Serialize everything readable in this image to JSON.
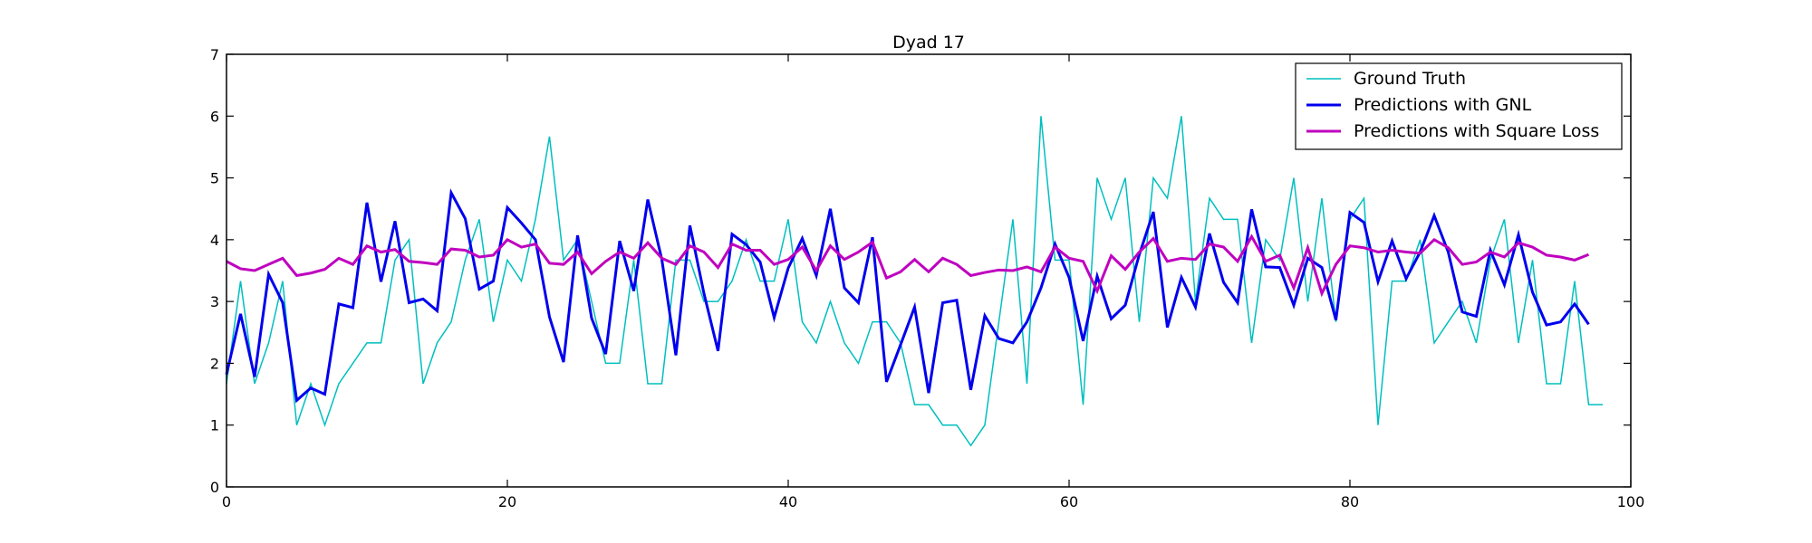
{
  "chart_data": {
    "type": "line",
    "title": "Dyad 17",
    "xlabel": "",
    "ylabel": "",
    "xlim": [
      0,
      100
    ],
    "ylim": [
      0,
      7
    ],
    "x_ticks": [
      0,
      20,
      40,
      60,
      80,
      100
    ],
    "y_ticks": [
      0,
      1,
      2,
      3,
      4,
      5,
      6,
      7
    ],
    "grid": false,
    "legend_position": "top-right",
    "series": [
      {
        "name": "Ground Truth",
        "color": "#00bfbf",
        "style": "thin",
        "x": [
          0,
          1,
          2,
          3,
          4,
          5,
          6,
          7,
          8,
          9,
          10,
          11,
          12,
          13,
          14,
          15,
          16,
          17,
          18,
          19,
          20,
          21,
          22,
          23,
          24,
          25,
          26,
          27,
          28,
          29,
          30,
          31,
          32,
          33,
          34,
          35,
          36,
          37,
          38,
          39,
          40,
          41,
          42,
          43,
          44,
          45,
          46,
          47,
          48,
          49,
          50,
          51,
          52,
          53,
          54,
          55,
          56,
          57,
          58,
          59,
          60,
          61,
          62,
          63,
          64,
          65,
          66,
          67,
          68,
          69,
          70,
          71,
          72,
          73,
          74,
          75,
          76,
          77,
          78,
          79,
          80,
          81,
          82,
          83,
          84,
          85,
          86,
          87,
          88,
          89,
          90,
          91,
          92,
          93,
          94,
          95,
          96,
          97,
          98
        ],
        "values": [
          1.67,
          3.33,
          1.67,
          2.33,
          3.33,
          1.0,
          1.67,
          1.0,
          1.67,
          2.0,
          2.33,
          2.33,
          3.67,
          4.0,
          1.67,
          2.33,
          2.67,
          3.67,
          4.33,
          2.67,
          3.67,
          3.33,
          4.33,
          5.67,
          3.67,
          4.0,
          3.0,
          2.0,
          2.0,
          3.67,
          1.67,
          1.67,
          3.67,
          3.67,
          3.0,
          3.0,
          3.33,
          4.0,
          3.33,
          3.33,
          4.33,
          2.67,
          2.33,
          3.0,
          2.33,
          2.0,
          2.67,
          2.67,
          2.33,
          1.33,
          1.33,
          1.0,
          1.0,
          0.67,
          1.0,
          2.67,
          4.33,
          1.67,
          6.0,
          3.67,
          3.67,
          1.33,
          5.0,
          4.33,
          5.0,
          2.67,
          5.0,
          4.67,
          6.0,
          3.0,
          4.67,
          4.33,
          4.33,
          2.33,
          4.0,
          3.67,
          5.0,
          3.0,
          4.67,
          2.67,
          4.33,
          4.67,
          1.0,
          3.33,
          3.33,
          4.0,
          2.33,
          2.67,
          3.0,
          2.33,
          3.67,
          4.33,
          2.33,
          3.67,
          1.67,
          1.67,
          3.33,
          1.33,
          1.33
        ]
      },
      {
        "name": "Predictions with GNL",
        "color": "#0000ee",
        "style": "thick",
        "x": [
          0,
          1,
          2,
          3,
          4,
          5,
          6,
          7,
          8,
          9,
          10,
          11,
          12,
          13,
          14,
          15,
          16,
          17,
          18,
          19,
          20,
          21,
          22,
          23,
          24,
          25,
          26,
          27,
          28,
          29,
          30,
          31,
          32,
          33,
          34,
          35,
          36,
          37,
          38,
          39,
          40,
          41,
          42,
          43,
          44,
          45,
          46,
          47,
          48,
          49,
          50,
          51,
          52,
          53,
          54,
          55,
          56,
          57,
          58,
          59,
          60,
          61,
          62,
          63,
          64,
          65,
          66,
          67,
          68,
          69,
          70,
          71,
          72,
          73,
          74,
          75,
          76,
          77,
          78,
          79,
          80,
          81,
          82,
          83,
          84,
          85,
          86,
          87,
          88,
          89,
          90,
          91,
          92,
          93,
          94,
          95,
          96,
          97
        ],
        "values": [
          1.82,
          2.8,
          1.78,
          3.44,
          2.98,
          1.4,
          1.6,
          1.5,
          2.96,
          2.9,
          4.6,
          3.32,
          4.3,
          2.98,
          3.04,
          2.85,
          4.76,
          4.34,
          3.2,
          3.33,
          4.52,
          4.27,
          4.0,
          2.75,
          2.02,
          4.07,
          2.73,
          2.15,
          3.98,
          3.17,
          4.65,
          3.68,
          2.13,
          4.23,
          3.13,
          2.2,
          4.09,
          3.92,
          3.64,
          2.74,
          3.54,
          4.02,
          3.42,
          4.5,
          3.22,
          2.98,
          4.04,
          1.7,
          2.3,
          2.91,
          1.52,
          2.98,
          3.02,
          1.57,
          2.77,
          2.4,
          2.33,
          2.67,
          3.22,
          3.93,
          3.39,
          2.36,
          3.41,
          2.72,
          2.94,
          3.76,
          4.45,
          2.58,
          3.39,
          2.91,
          4.1,
          3.31,
          2.98,
          4.49,
          3.56,
          3.55,
          2.94,
          3.7,
          3.55,
          2.7,
          4.44,
          4.28,
          3.32,
          3.98,
          3.37,
          3.8,
          4.39,
          3.8,
          2.83,
          2.76,
          3.83,
          3.27,
          4.08,
          3.15,
          2.62,
          2.67,
          2.96,
          2.63
        ]
      },
      {
        "name": "Predictions with Square Loss",
        "color": "#bf00bf",
        "style": "thick",
        "x": [
          0,
          1,
          2,
          3,
          4,
          5,
          6,
          7,
          8,
          9,
          10,
          11,
          12,
          13,
          14,
          15,
          16,
          17,
          18,
          19,
          20,
          21,
          22,
          23,
          24,
          25,
          26,
          27,
          28,
          29,
          30,
          31,
          32,
          33,
          34,
          35,
          36,
          37,
          38,
          39,
          40,
          41,
          42,
          43,
          44,
          45,
          46,
          47,
          48,
          49,
          50,
          51,
          52,
          53,
          54,
          55,
          56,
          57,
          58,
          59,
          60,
          61,
          62,
          63,
          64,
          65,
          66,
          67,
          68,
          69,
          70,
          71,
          72,
          73,
          74,
          75,
          76,
          77,
          78,
          79,
          80,
          81,
          82,
          83,
          84,
          85,
          86,
          87,
          88,
          89,
          90,
          91,
          92,
          93,
          94,
          95,
          96,
          97
        ],
        "values": [
          3.65,
          3.53,
          3.5,
          3.6,
          3.7,
          3.42,
          3.46,
          3.52,
          3.7,
          3.6,
          3.9,
          3.8,
          3.84,
          3.65,
          3.63,
          3.6,
          3.85,
          3.83,
          3.72,
          3.75,
          4.0,
          3.88,
          3.93,
          3.62,
          3.6,
          3.8,
          3.45,
          3.65,
          3.8,
          3.7,
          3.95,
          3.7,
          3.6,
          3.9,
          3.8,
          3.55,
          3.93,
          3.83,
          3.83,
          3.6,
          3.68,
          3.88,
          3.5,
          3.9,
          3.68,
          3.8,
          3.96,
          3.38,
          3.48,
          3.68,
          3.48,
          3.7,
          3.6,
          3.42,
          3.47,
          3.51,
          3.5,
          3.56,
          3.48,
          3.88,
          3.7,
          3.65,
          3.17,
          3.74,
          3.52,
          3.8,
          4.02,
          3.65,
          3.7,
          3.68,
          3.93,
          3.88,
          3.65,
          4.05,
          3.65,
          3.75,
          3.22,
          3.87,
          3.13,
          3.6,
          3.9,
          3.87,
          3.8,
          3.83,
          3.8,
          3.78,
          4.0,
          3.87,
          3.6,
          3.64,
          3.8,
          3.72,
          3.95,
          3.88,
          3.75,
          3.72,
          3.67,
          3.76
        ]
      }
    ]
  }
}
